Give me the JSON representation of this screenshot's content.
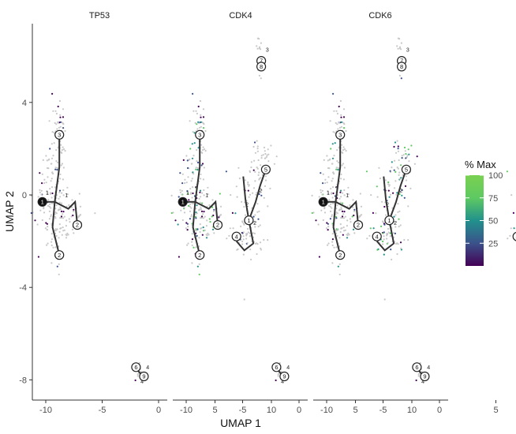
{
  "chart_data": {
    "type": "scatter",
    "facets": [
      "TP53",
      "CDK4",
      "CDK6"
    ],
    "xlabel": "UMAP 1",
    "ylabel": "UMAP 2",
    "x_ticks": [
      -10,
      -5,
      0,
      5,
      10
    ],
    "y_ticks": [
      -8,
      -4,
      0,
      4
    ],
    "xlim": [
      -12,
      12
    ],
    "ylim": [
      -9,
      6.8
    ],
    "grid": false,
    "legend": {
      "title": "% Max",
      "position": "right",
      "type": "colorbar",
      "ticks": [
        25,
        50,
        75,
        100
      ],
      "range": [
        0,
        100
      ],
      "colors": [
        "#440154",
        "#3b528b",
        "#21918c",
        "#5ec962",
        "#7ad151"
      ]
    },
    "clusters": [
      {
        "cx": -9.3,
        "cy": 0.2,
        "sx": 0.6,
        "sy": 1.2,
        "n": 90
      },
      {
        "cx": -8.8,
        "cy": 2.8,
        "sx": 0.3,
        "sy": 0.7,
        "n": 50
      },
      {
        "cx": -8.6,
        "cy": -1.6,
        "sx": 0.6,
        "sy": 0.7,
        "n": 55
      },
      {
        "cx": -10.2,
        "cy": -0.4,
        "sx": 0.6,
        "sy": 0.6,
        "n": 35
      },
      {
        "cx": -7.6,
        "cy": -0.6,
        "sx": 0.6,
        "sy": 0.5,
        "n": 25
      },
      {
        "cx": 9.0,
        "cy": 1.2,
        "sx": 0.6,
        "sy": 0.6,
        "n": 45
      },
      {
        "cx": 8.0,
        "cy": -0.1,
        "sx": 0.7,
        "sy": 1.1,
        "n": 60
      },
      {
        "cx": 7.7,
        "cy": -1.9,
        "sx": 0.8,
        "sy": 0.4,
        "n": 45
      },
      {
        "cx": 9.0,
        "cy": 5.9,
        "sx": 0.2,
        "sy": 0.5,
        "n": 22
      },
      {
        "cx": -1.7,
        "cy": -7.7,
        "sx": 0.25,
        "sy": 0.2,
        "n": 8
      }
    ],
    "trajectory": {
      "segments": [
        [
          [
            -8.8,
            2.6
          ],
          [
            -8.8,
            1.2
          ],
          [
            -9.2,
            -0.3
          ]
        ],
        [
          [
            -9.2,
            -0.3
          ],
          [
            -9.4,
            -1.4
          ],
          [
            -8.8,
            -2.6
          ]
        ],
        [
          [
            -9.2,
            -0.3
          ],
          [
            -8.0,
            -0.6
          ],
          [
            -7.4,
            -0.3
          ],
          [
            -7.2,
            -1.3
          ]
        ],
        [
          [
            -10.3,
            -0.3
          ],
          [
            -9.2,
            -0.3
          ]
        ],
        [
          [
            8.0,
            -1.1
          ],
          [
            8.4,
            -2.1
          ],
          [
            7.6,
            -2.4
          ],
          [
            6.9,
            -2.0
          ]
        ],
        [
          [
            8.0,
            -1.1
          ],
          [
            8.6,
            -0.3
          ],
          [
            9.0,
            0.4
          ],
          [
            9.5,
            1.1
          ]
        ],
        [
          [
            8.0,
            -1.1
          ],
          [
            7.7,
            -0.2
          ],
          [
            7.5,
            0.8
          ]
        ],
        [
          [
            9.1,
            5.8
          ],
          [
            9.1,
            5.6
          ]
        ],
        [
          [
            -2.0,
            -7.5
          ],
          [
            -1.3,
            -7.9
          ]
        ]
      ],
      "milestones": [
        {
          "x": -8.8,
          "y": 2.6,
          "label": "3",
          "root": false
        },
        {
          "x": -10.3,
          "y": -0.3,
          "label": "1",
          "root": true
        },
        {
          "x": -7.2,
          "y": -1.3,
          "label": "2",
          "root": false
        },
        {
          "x": -8.8,
          "y": -2.6,
          "label": "2",
          "root": false
        },
        {
          "x": 8.0,
          "y": -1.1,
          "label": "1",
          "root": false
        },
        {
          "x": 6.9,
          "y": -1.8,
          "label": "4",
          "root": false
        },
        {
          "x": 9.5,
          "y": 1.1,
          "label": "5",
          "root": false
        },
        {
          "x": 9.1,
          "y": 5.8,
          "label": "7",
          "root": false
        },
        {
          "x": 9.1,
          "y": 5.55,
          "label": "8",
          "root": false
        },
        {
          "x": -2.0,
          "y": -7.45,
          "label": "6",
          "root": false
        },
        {
          "x": -1.3,
          "y": -7.85,
          "label": "9",
          "root": false
        }
      ],
      "small_labels": [
        {
          "x": -8.3,
          "y": -0.1,
          "label": "1"
        },
        {
          "x": -10.0,
          "y": 0.0,
          "label": "1"
        },
        {
          "x": 8.4,
          "y": -1.3,
          "label": "2"
        },
        {
          "x": 8.9,
          "y": 0.1,
          "label": "2"
        },
        {
          "x": 7.7,
          "y": -0.5,
          "label": "2"
        },
        {
          "x": 9.5,
          "y": 6.2,
          "label": "3"
        },
        {
          "x": -1.1,
          "y": -7.55,
          "label": "4"
        },
        {
          "x": -1.6,
          "y": -8.15,
          "label": "4"
        }
      ]
    },
    "expression_levels": {
      "TP53": 0.25,
      "CDK4": 0.9,
      "CDK6": 0.55
    }
  }
}
